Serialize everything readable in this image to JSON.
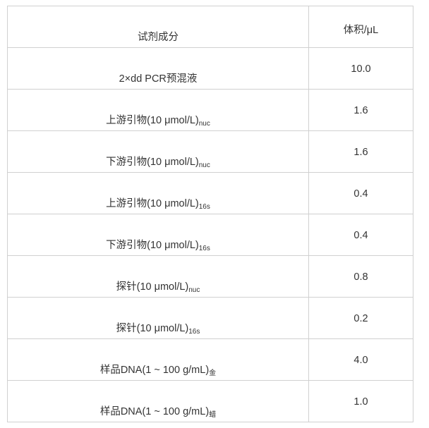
{
  "headers": [
    "试剂成分",
    "体积/μL"
  ],
  "rows": [
    {
      "name": "2×dd PCR预混液",
      "sub": "",
      "volume": "10.0"
    },
    {
      "name": "上游引物(10 μmol/L)",
      "sub": "nuc",
      "volume": "1.6"
    },
    {
      "name": "下游引物(10 μmol/L)",
      "sub": "nuc",
      "volume": "1.6"
    },
    {
      "name": "上游引物(10 μmol/L)",
      "sub": "16s",
      "volume": "0.4"
    },
    {
      "name": "下游引物(10 μmol/L)",
      "sub": "16s",
      "volume": "0.4"
    },
    {
      "name": "探针(10 μmol/L)",
      "sub": "nuc",
      "volume": "0.8"
    },
    {
      "name": "探针(10 μmol/L)",
      "sub": "16s",
      "volume": "0.2"
    },
    {
      "name": "样品DNA(1 ~ 100 g/mL)",
      "sub": "金",
      "volume": "4.0"
    },
    {
      "name": "样品DNA(1 ~ 100 g/mL)",
      "sub": "蜡",
      "volume": "1.0"
    }
  ]
}
